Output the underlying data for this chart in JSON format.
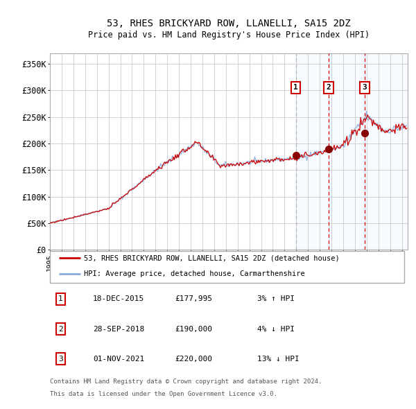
{
  "title": "53, RHES BRICKYARD ROW, LLANELLI, SA15 2DZ",
  "subtitle": "Price paid vs. HM Land Registry's House Price Index (HPI)",
  "ylim": [
    0,
    370000
  ],
  "xlim_start": 1995.0,
  "xlim_end": 2025.5,
  "yticks": [
    0,
    50000,
    100000,
    150000,
    200000,
    250000,
    300000,
    350000
  ],
  "ytick_labels": [
    "£0",
    "£50K",
    "£100K",
    "£150K",
    "£200K",
    "£250K",
    "£300K",
    "£350K"
  ],
  "background_color": "#ffffff",
  "grid_color": "#cccccc",
  "shade_color": "#ddeeff",
  "red_line_color": "#cc0000",
  "blue_line_color": "#88aadd",
  "sale_marker_color": "#880000",
  "vline1_color": "#aaaaaa",
  "vline2_color": "#cc0000",
  "vline3_color": "#cc0000",
  "sale1_date": 2015.96,
  "sale1_price": 177995,
  "sale2_date": 2018.75,
  "sale2_price": 190000,
  "sale3_date": 2021.83,
  "sale3_price": 220000,
  "shade_start": 2015.96,
  "shade_end": 2025.5,
  "legend_entries": [
    "53, RHES BRICKYARD ROW, LLANELLI, SA15 2DZ (detached house)",
    "HPI: Average price, detached house, Carmarthenshire"
  ],
  "table_data": [
    [
      "1",
      "18-DEC-2015",
      "£177,995",
      "3% ↑ HPI"
    ],
    [
      "2",
      "28-SEP-2018",
      "£190,000",
      "4% ↓ HPI"
    ],
    [
      "3",
      "01-NOV-2021",
      "£220,000",
      "13% ↓ HPI"
    ]
  ],
  "footnote1": "Contains HM Land Registry data © Crown copyright and database right 2024.",
  "footnote2": "This data is licensed under the Open Government Licence v3.0."
}
